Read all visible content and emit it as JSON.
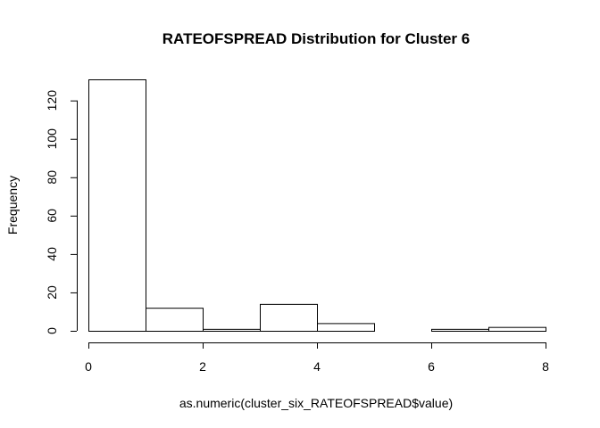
{
  "chart_data": {
    "type": "bar",
    "subtype": "histogram",
    "title": "RATEOFSPREAD Distribution for Cluster 6",
    "xlabel": "as.numeric(cluster_six_RATEOFSPREAD$value)",
    "ylabel": "Frequency",
    "bins": [
      {
        "start": 0,
        "end": 1,
        "count": 131
      },
      {
        "start": 1,
        "end": 2,
        "count": 12
      },
      {
        "start": 2,
        "end": 3,
        "count": 1
      },
      {
        "start": 3,
        "end": 4,
        "count": 14
      },
      {
        "start": 4,
        "end": 5,
        "count": 4
      },
      {
        "start": 5,
        "end": 6,
        "count": 0
      },
      {
        "start": 6,
        "end": 7,
        "count": 1
      },
      {
        "start": 7,
        "end": 8,
        "count": 2
      }
    ],
    "xlim": [
      0,
      8
    ],
    "ylim": [
      0,
      131
    ],
    "xticks": [
      "0",
      "2",
      "4",
      "6",
      "8"
    ],
    "yticks": [
      "0",
      "20",
      "40",
      "60",
      "80",
      "100",
      "120"
    ],
    "bar_fill": "#ffffff",
    "bar_stroke": "#000000"
  }
}
